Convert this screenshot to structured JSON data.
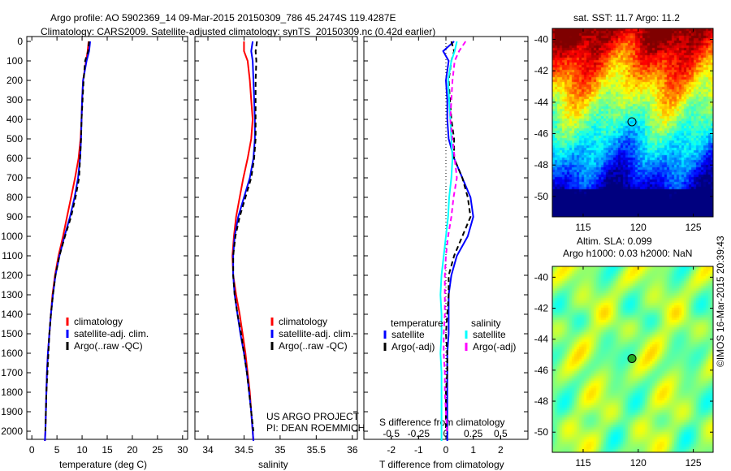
{
  "title_line1": "Argo profile: AO 5902369_14 09-Mar-2015 20150309_786 45.2474S 119.4287E",
  "title_line2": "Climatology: CARS2009. Satellite-adjusted climatology: synTS_20150309.nc (0.42d earlier)",
  "timestamp": "©IMOS 16-Mar-2015 20:39:43",
  "colors": {
    "climatology": "#ff0000",
    "satellite": "#0000ff",
    "argo": "#000000",
    "sal_satellite": "#00ffff",
    "sal_argo": "#ff00ff"
  },
  "chart_data": [
    {
      "type": "line",
      "name": "temperature",
      "xlabel": "temperature (deg C)",
      "ylabel": "",
      "xlim": [
        -1,
        31
      ],
      "ylim": [
        2050,
        0
      ],
      "xticks": [
        "0",
        "5",
        "10",
        "15",
        "20",
        "25",
        "30"
      ],
      "xtick_values": [
        0,
        5,
        10,
        15,
        20,
        25,
        30
      ],
      "yticks": [
        "0",
        "100",
        "200",
        "300",
        "400",
        "500",
        "600",
        "700",
        "800",
        "900",
        "1000",
        "1100",
        "1200",
        "1300",
        "1400",
        "1500",
        "1600",
        "1700",
        "1800",
        "1900",
        "2000"
      ],
      "legend": [
        "climatology",
        "satellite-adj. clim.",
        "Argo(..raw -QC)"
      ],
      "depth": [
        0,
        50,
        100,
        200,
        300,
        400,
        500,
        600,
        700,
        800,
        900,
        1000,
        1100,
        1200,
        1300,
        1400,
        1500,
        1600,
        1700,
        1800,
        1900,
        2000,
        2050
      ],
      "series": [
        {
          "name": "climatology",
          "values": [
            11.3,
            11.1,
            10.8,
            10.2,
            10.0,
            9.9,
            9.7,
            9.3,
            8.6,
            7.8,
            7.0,
            6.2,
            5.3,
            4.6,
            4.1,
            3.8,
            3.5,
            3.2,
            3.0,
            2.9,
            2.8,
            2.7,
            2.6
          ]
        },
        {
          "name": "satellite-adj. clim.",
          "values": [
            11.6,
            11.4,
            10.9,
            10.2,
            10.0,
            9.9,
            9.8,
            9.6,
            9.2,
            8.5,
            7.6,
            6.5,
            5.5,
            4.7,
            4.2,
            3.8,
            3.5,
            3.2,
            3.0,
            2.9,
            2.8,
            2.7,
            2.6
          ]
        },
        {
          "name": "Argo(..raw -QC)",
          "values": [
            11.4,
            11.2,
            10.6,
            10.3,
            10.1,
            9.9,
            9.8,
            9.6,
            9.4,
            8.7,
            7.8,
            6.6,
            5.5,
            4.7,
            4.2,
            3.8,
            3.5,
            3.3,
            3.1,
            2.9,
            2.8,
            2.7
          ]
        }
      ]
    },
    {
      "type": "line",
      "name": "salinity",
      "xlabel": "salinity",
      "xlim": [
        33.82,
        36.07
      ],
      "ylim": [
        2050,
        0
      ],
      "xticks": [
        "34",
        "34.5",
        "35",
        "35.5",
        "36"
      ],
      "xtick_values": [
        34,
        34.5,
        35,
        35.5,
        36
      ],
      "legend": [
        "climatology",
        "satellite-adj. clim.",
        "Argo(..raw -QC)"
      ],
      "annotation": [
        "US ARGO PROJECT",
        "PI: DEAN ROEMMICH"
      ],
      "depth": [
        0,
        50,
        100,
        200,
        300,
        400,
        500,
        600,
        700,
        800,
        900,
        1000,
        1100,
        1200,
        1300,
        1400,
        1500,
        1600,
        1700,
        1800,
        1900,
        2000,
        2050
      ],
      "series": [
        {
          "name": "climatology",
          "values": [
            34.5,
            34.5,
            34.55,
            34.58,
            34.6,
            34.62,
            34.6,
            34.55,
            34.49,
            34.44,
            34.39,
            34.36,
            34.34,
            34.35,
            34.39,
            34.44,
            34.48,
            34.52,
            34.55,
            34.58,
            34.6,
            34.62,
            34.63
          ]
        },
        {
          "name": "satellite-adj. clim.",
          "values": [
            34.62,
            34.6,
            34.62,
            34.63,
            34.64,
            34.65,
            34.65,
            34.63,
            34.58,
            34.5,
            34.42,
            34.37,
            34.35,
            34.35,
            34.37,
            34.41,
            34.45,
            34.5,
            34.54,
            34.57,
            34.6,
            34.62,
            34.63
          ]
        },
        {
          "name": "Argo(..raw -QC)",
          "values": [
            34.68,
            34.66,
            34.67,
            34.66,
            34.66,
            34.66,
            34.66,
            34.64,
            34.6,
            34.52,
            34.44,
            34.38,
            34.35,
            34.35,
            34.37,
            34.41,
            34.46,
            34.5,
            34.54,
            34.57,
            34.6,
            34.63
          ]
        }
      ]
    },
    {
      "type": "line",
      "name": "difference",
      "xlabel": "T difference from climatology",
      "x2label": "S difference from climatology",
      "xlim": [
        -3,
        3
      ],
      "ylim": [
        2050,
        0
      ],
      "xticks": [
        "-2",
        "-1",
        "0",
        "1",
        "2"
      ],
      "xtick_values": [
        -2,
        -1,
        0,
        1,
        2
      ],
      "x2ticks": [
        "-0.5",
        "-0.25",
        "0",
        "0.25",
        "0.5"
      ],
      "x2tick_values": [
        -0.5,
        -0.25,
        0,
        0.25,
        0.5
      ],
      "legend_titles": [
        "temperature",
        "salinity"
      ],
      "legend": [
        "satellite",
        "Argo(-adj)",
        "satellite",
        "Argo(-adj)"
      ],
      "depth": [
        0,
        50,
        100,
        200,
        300,
        400,
        500,
        600,
        700,
        800,
        900,
        1000,
        1100,
        1200,
        1300,
        1400,
        1500,
        1600,
        1700,
        1800,
        1900,
        2000,
        2050
      ],
      "series": [
        {
          "name": "T satellite",
          "values": [
            0.3,
            -0.1,
            0.1,
            0.0,
            0.05,
            0.05,
            0.1,
            0.3,
            0.6,
            0.9,
            1.0,
            0.8,
            0.4,
            0.2,
            0.1,
            0.1,
            0.1,
            0.05,
            0.05,
            0.05,
            0.05,
            0.05,
            0.05
          ]
        },
        {
          "name": "T Argo(-adj)",
          "values": [
            0.2,
            0.3,
            0.2,
            0.1,
            0.15,
            0.2,
            0.3,
            0.3,
            0.6,
            0.8,
            0.9,
            0.6,
            0.3,
            0.1,
            0.1,
            0.05,
            0.0,
            0.05,
            0.05,
            0.0,
            0.0,
            0.0
          ]
        },
        {
          "name": "S satellite",
          "values": [
            0.1,
            0.08,
            0.05,
            0.02,
            0.03,
            0.04,
            0.05,
            0.06,
            0.05,
            0.03,
            0.02,
            0.0,
            -0.02,
            -0.04,
            -0.05,
            -0.04,
            -0.04,
            -0.05,
            -0.04,
            -0.04,
            -0.04,
            -0.04,
            -0.04
          ]
        },
        {
          "name": "S Argo(-adj)",
          "values": [
            0.18,
            0.12,
            0.08,
            0.06,
            0.05,
            0.04,
            0.06,
            0.08,
            0.1,
            0.07,
            0.05,
            0.02,
            0.0,
            -0.01,
            -0.01,
            -0.01,
            -0.02,
            -0.02,
            -0.01,
            -0.01,
            0.0,
            0.01
          ]
        }
      ]
    },
    {
      "type": "heatmap",
      "name": "sst-map",
      "title": "sat. SST: 11.7 Argo: 11.2",
      "xticks": [
        "115",
        "120",
        "125"
      ],
      "xtick_values": [
        115,
        120,
        125
      ],
      "yticks": [
        "-40",
        "-42",
        "-44",
        "-46",
        "-48",
        "-50"
      ],
      "ytick_values": [
        -40,
        -42,
        -44,
        -46,
        -48,
        -50
      ],
      "xlim": [
        112.2,
        126.8
      ],
      "ylim": [
        -51.3,
        -39.3
      ],
      "marker": [
        119.4287,
        -45.2474
      ]
    },
    {
      "type": "heatmap",
      "name": "sla-map",
      "title_line1": "Altim. SLA: 0.099",
      "title_line2": "Argo h1000: 0.03 h2000: NaN",
      "xticks": [
        "115",
        "120",
        "125"
      ],
      "xtick_values": [
        115,
        120,
        125
      ],
      "yticks": [
        "-40",
        "-42",
        "-44",
        "-46",
        "-48",
        "-50"
      ],
      "ytick_values": [
        -40,
        -42,
        -44,
        -46,
        -48,
        -50
      ],
      "xlim": [
        112.2,
        126.8
      ],
      "ylim": [
        -51.3,
        -39.3
      ],
      "marker": [
        119.4287,
        -45.2474
      ]
    }
  ]
}
